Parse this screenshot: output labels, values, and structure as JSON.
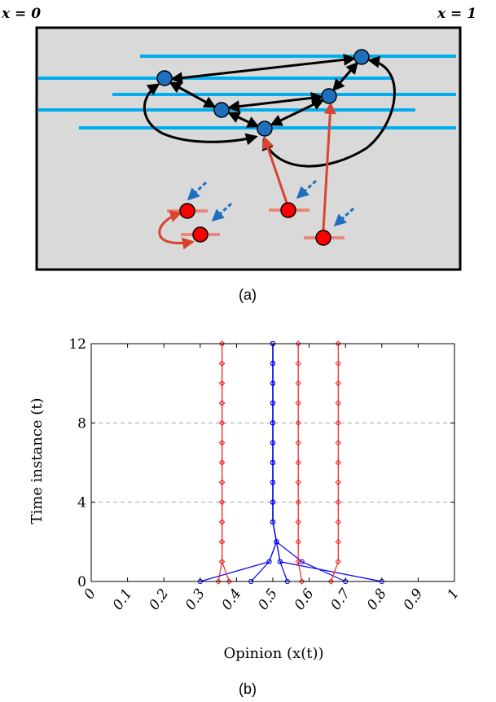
{
  "panel_a": {
    "label_left": "x = 0",
    "label_right": "x = 1",
    "caption": "(a)"
  },
  "panel_b": {
    "caption": "(b)",
    "xlabel": "Opinion (x(t))",
    "ylabel": "Time instance (t)"
  },
  "colors": {
    "background_box": "#d9d9d9",
    "blue_node": "#1f6fbf",
    "red_node": "#ff0000",
    "bar_cyan": "#00aeef",
    "bar_red": "#e8877a",
    "arrow_red": "#d9442f",
    "dashed_blue": "#1f6fbf",
    "series_blue": "#0000ee",
    "series_red": "#ee2222"
  },
  "chart_data": {
    "type": "line",
    "xlim": [
      0,
      1
    ],
    "ylim": [
      0,
      12
    ],
    "xticks": [
      "0",
      "0.1",
      "0.2",
      "0.3",
      "0.4",
      "0.5",
      "0.6",
      "0.7",
      "0.8",
      "0.9",
      "1"
    ],
    "yticks": [
      "0",
      "4",
      "8",
      "12"
    ],
    "grid": "horizontal-dashed",
    "series": [
      {
        "group": "normal",
        "color": "blue",
        "marker": "circle",
        "x": [
          0.3,
          0.49,
          0.51,
          0.5,
          0.5,
          0.5,
          0.5,
          0.5,
          0.5,
          0.5,
          0.5,
          0.5,
          0.5
        ]
      },
      {
        "group": "normal",
        "color": "blue",
        "marker": "circle",
        "x": [
          0.44,
          0.49,
          0.51,
          0.5,
          0.5,
          0.5,
          0.5,
          0.5,
          0.5,
          0.5,
          0.5,
          0.5,
          0.5
        ]
      },
      {
        "group": "normal",
        "color": "blue",
        "marker": "circle",
        "x": [
          0.54,
          0.52,
          0.51,
          0.5,
          0.5,
          0.5,
          0.5,
          0.5,
          0.5,
          0.5,
          0.5,
          0.5,
          0.5
        ]
      },
      {
        "group": "normal",
        "color": "blue",
        "marker": "circle",
        "x": [
          0.7,
          0.58,
          0.51,
          0.5,
          0.5,
          0.5,
          0.5,
          0.5,
          0.5,
          0.5,
          0.5,
          0.5,
          0.5
        ]
      },
      {
        "group": "normal",
        "color": "blue",
        "marker": "circle",
        "x": [
          0.8,
          0.52,
          0.51,
          0.5,
          0.5,
          0.5,
          0.5,
          0.5,
          0.5,
          0.5,
          0.5,
          0.5,
          0.5
        ]
      },
      {
        "group": "stubborn",
        "color": "red",
        "marker": "diamond",
        "x": [
          0.35,
          0.36,
          0.36,
          0.36,
          0.36,
          0.36,
          0.36,
          0.36,
          0.36,
          0.36,
          0.36,
          0.36,
          0.36
        ]
      },
      {
        "group": "stubborn",
        "color": "red",
        "marker": "diamond",
        "x": [
          0.38,
          0.36,
          0.36,
          0.36,
          0.36,
          0.36,
          0.36,
          0.36,
          0.36,
          0.36,
          0.36,
          0.36,
          0.36
        ]
      },
      {
        "group": "stubborn",
        "color": "red",
        "marker": "diamond",
        "x": [
          0.58,
          0.57,
          0.57,
          0.57,
          0.57,
          0.57,
          0.57,
          0.57,
          0.57,
          0.57,
          0.57,
          0.57,
          0.57
        ]
      },
      {
        "group": "stubborn",
        "color": "red",
        "marker": "diamond",
        "x": [
          0.66,
          0.68,
          0.68,
          0.68,
          0.68,
          0.68,
          0.68,
          0.68,
          0.68,
          0.68,
          0.68,
          0.68,
          0.68
        ]
      }
    ]
  }
}
